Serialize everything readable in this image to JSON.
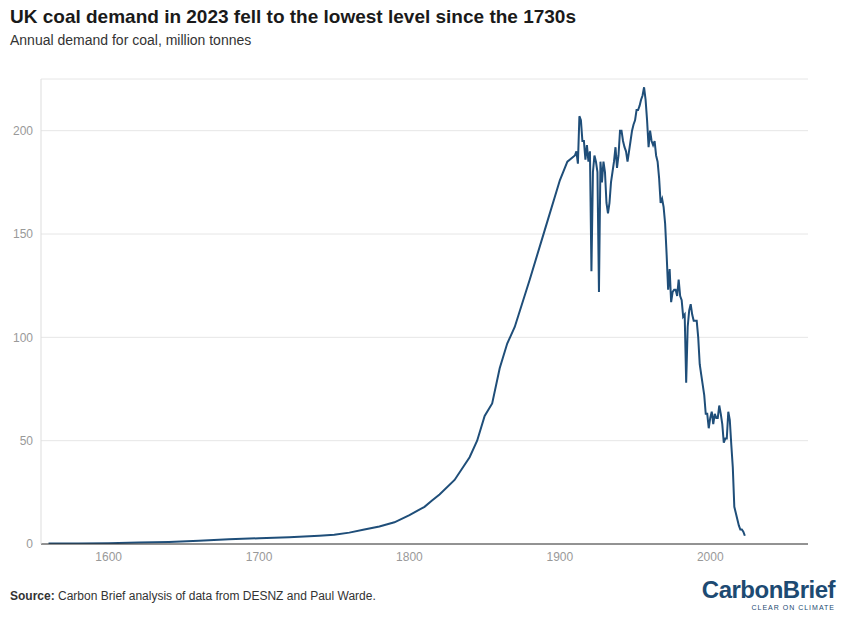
{
  "chart_data": {
    "type": "line",
    "title": "UK coal demand in 2023 fell to the lowest level since the 1730s",
    "subtitle": "Annual demand for coal, million tonnes",
    "source_label": "Source:",
    "source": "Carbon Brief analysis of data from DESNZ and Paul Warde.",
    "logo": "CarbonBrief",
    "logo_tagline": "CLEAR ON CLIMATE",
    "color": "#1f4e79",
    "grid": true,
    "xlim": [
      1555,
      2065
    ],
    "xticks": [
      1600,
      1700,
      1800,
      1900,
      2000
    ],
    "ylim": [
      0,
      225
    ],
    "yticks": [
      0,
      50,
      100,
      150,
      200
    ],
    "x": [
      1560,
      1580,
      1600,
      1620,
      1640,
      1660,
      1680,
      1700,
      1720,
      1740,
      1750,
      1760,
      1770,
      1780,
      1790,
      1800,
      1810,
      1815,
      1820,
      1830,
      1840,
      1845,
      1850,
      1855,
      1860,
      1865,
      1870,
      1880,
      1890,
      1900,
      1905,
      1910,
      1911,
      1912,
      1913,
      1914,
      1915,
      1916,
      1917,
      1918,
      1919,
      1920,
      1921,
      1922,
      1923,
      1924,
      1925,
      1926,
      1927,
      1928,
      1929,
      1930,
      1931,
      1932,
      1933,
      1934,
      1935,
      1936,
      1937,
      1938,
      1939,
      1940,
      1941,
      1942,
      1943,
      1944,
      1945,
      1946,
      1947,
      1948,
      1949,
      1950,
      1951,
      1952,
      1953,
      1954,
      1955,
      1956,
      1957,
      1958,
      1959,
      1960,
      1961,
      1962,
      1963,
      1964,
      1965,
      1966,
      1967,
      1968,
      1969,
      1970,
      1971,
      1972,
      1973,
      1974,
      1975,
      1976,
      1977,
      1978,
      1979,
      1980,
      1981,
      1982,
      1983,
      1984,
      1985,
      1986,
      1987,
      1988,
      1989,
      1990,
      1991,
      1992,
      1993,
      1994,
      1995,
      1996,
      1997,
      1998,
      1999,
      2000,
      2001,
      2002,
      2003,
      2004,
      2005,
      2006,
      2007,
      2008,
      2009,
      2010,
      2011,
      2012,
      2013,
      2014,
      2015,
      2016,
      2017,
      2018,
      2019,
      2020,
      2021,
      2022,
      2023
    ],
    "values": [
      0.2,
      0.3,
      0.4,
      0.7,
      1.0,
      1.6,
      2.3,
      2.8,
      3.3,
      4.0,
      4.5,
      5.5,
      7,
      8.5,
      10.5,
      14,
      18,
      21,
      24,
      31,
      42,
      50,
      62,
      68,
      85,
      97,
      105,
      128,
      152,
      176,
      185,
      188,
      190,
      184,
      207,
      205,
      195,
      195,
      186,
      193,
      185,
      190,
      132,
      180,
      188,
      185,
      180,
      122,
      185,
      175,
      185,
      180,
      165,
      160,
      165,
      175,
      180,
      185,
      192,
      182,
      188,
      200,
      200,
      195,
      192,
      190,
      185,
      190,
      195,
      200,
      203,
      205,
      210,
      210,
      212,
      215,
      217,
      221,
      215,
      205,
      192,
      200,
      195,
      193,
      195,
      188,
      185,
      177,
      165,
      167,
      163,
      155,
      140,
      123,
      133,
      117,
      122,
      123,
      123,
      120,
      128,
      120,
      118,
      110,
      111,
      78,
      105,
      113,
      116,
      111,
      108,
      108,
      108,
      100,
      87,
      82,
      77,
      72,
      63,
      63,
      56,
      61,
      64,
      58,
      63,
      61,
      61,
      67,
      63,
      58,
      49,
      51,
      51,
      64,
      60,
      48,
      37,
      18,
      15,
      12,
      9,
      7,
      7,
      6,
      4
    ]
  }
}
